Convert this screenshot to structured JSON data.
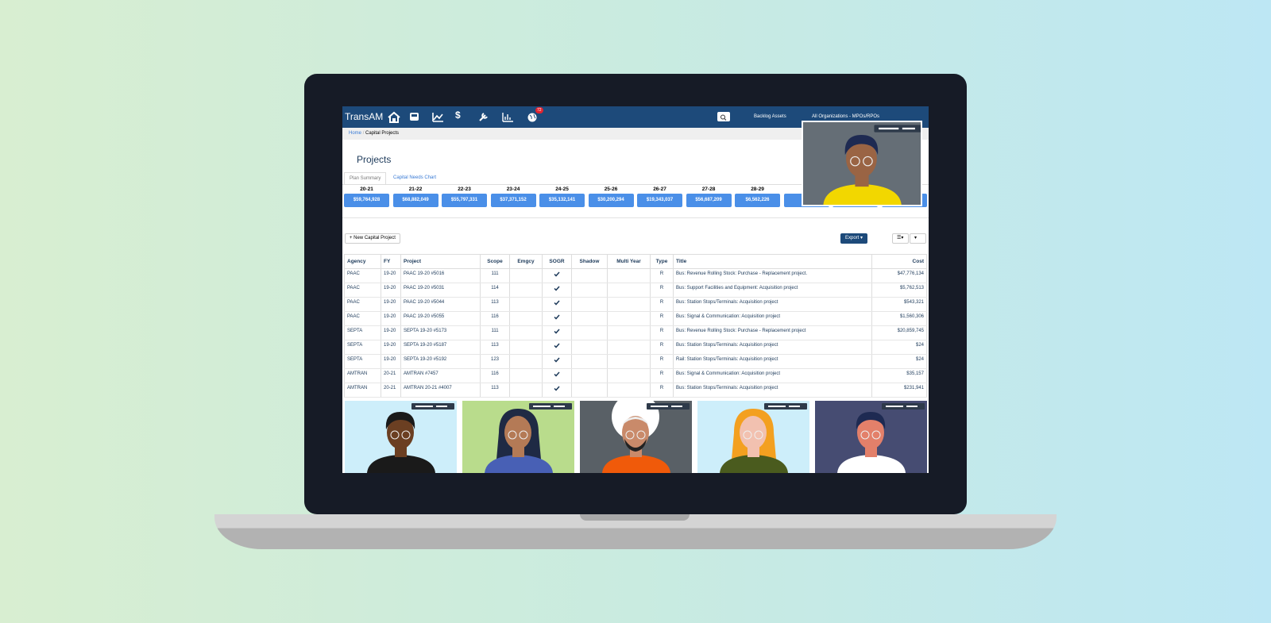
{
  "nav": {
    "brand": "TransAM",
    "currency_icon": "$",
    "badge": "72",
    "filter_assets": "Backlog Assets",
    "filter_orgs": "All Organizations - MPOs/RPOs"
  },
  "breadcrumb": {
    "home": "Home",
    "current": "Capital Projects"
  },
  "page": {
    "title": "Projects",
    "tabs": [
      "Plan Summary",
      "Capital Needs Chart"
    ]
  },
  "fiscal_years": [
    {
      "year": "20-21",
      "amount": "$59,764,928"
    },
    {
      "year": "21-22",
      "amount": "$68,882,049"
    },
    {
      "year": "22-23",
      "amount": "$55,797,331"
    },
    {
      "year": "23-24",
      "amount": "$37,371,152"
    },
    {
      "year": "24-25",
      "amount": "$35,132,141"
    },
    {
      "year": "25-26",
      "amount": "$30,200,294"
    },
    {
      "year": "26-27",
      "amount": "$19,343,037"
    },
    {
      "year": "27-28",
      "amount": "$56,687,209"
    },
    {
      "year": "28-29",
      "amount": "$6,562,226"
    }
  ],
  "buttons": {
    "new_project": "New Capital Project",
    "export": "Export"
  },
  "table": {
    "headers": [
      "Agency",
      "FY",
      "Project",
      "Scope",
      "Emgcy",
      "SOGR",
      "Shadow",
      "Multi Year",
      "Type",
      "Title",
      "Cost"
    ],
    "rows": [
      {
        "agency": "PAAC",
        "fy": "19-20",
        "project": "PAAC 19-20 #5016",
        "scope": "111",
        "sogr": true,
        "type": "R",
        "title": "Bus: Revenue Rolling Stock: Purchase - Replacement project.",
        "cost": "$47,776,134"
      },
      {
        "agency": "PAAC",
        "fy": "19-20",
        "project": "PAAC 19-20 #5031",
        "scope": "114",
        "sogr": true,
        "type": "R",
        "title": "Bus: Support Facilities and Equipment: Acquisition project",
        "cost": "$5,762,513"
      },
      {
        "agency": "PAAC",
        "fy": "19-20",
        "project": "PAAC 19-20 #5044",
        "scope": "113",
        "sogr": true,
        "type": "R",
        "title": "Bus: Station Stops/Terminals: Acquisition project",
        "cost": "$543,321"
      },
      {
        "agency": "PAAC",
        "fy": "19-20",
        "project": "PAAC 19-20 #5055",
        "scope": "116",
        "sogr": true,
        "type": "R",
        "title": "Bus: Signal & Communication: Acquisition project",
        "cost": "$1,560,306"
      },
      {
        "agency": "SEPTA",
        "fy": "19-20",
        "project": "SEPTA 19-20 #5173",
        "scope": "111",
        "sogr": true,
        "type": "R",
        "title": "Bus: Revenue Rolling Stock: Purchase - Replacement project",
        "cost": "$20,859,745"
      },
      {
        "agency": "SEPTA",
        "fy": "19-20",
        "project": "SEPTA 19-20 #5187",
        "scope": "113",
        "sogr": true,
        "type": "R",
        "title": "Bus: Station Stops/Terminals: Acquisition project",
        "cost": "$24"
      },
      {
        "agency": "SEPTA",
        "fy": "19-20",
        "project": "SEPTA 19-20 #5192",
        "scope": "123",
        "sogr": true,
        "type": "R",
        "title": "Rail: Station Stops/Terminals: Acquisition project",
        "cost": "$24"
      },
      {
        "agency": "AMTRAN",
        "fy": "20-21",
        "project": "AMTRAN #7457",
        "scope": "116",
        "sogr": true,
        "type": "R",
        "title": "Bus: Signal & Communication: Acquisition project",
        "cost": "$35,157"
      },
      {
        "agency": "AMTRAN",
        "fy": "20-21",
        "project": "AMTRAN 20-21 #4007",
        "scope": "113",
        "sogr": true,
        "type": "R",
        "title": "Bus: Station Stops/Terminals: Acquisition project",
        "cost": "$231,941"
      }
    ]
  }
}
